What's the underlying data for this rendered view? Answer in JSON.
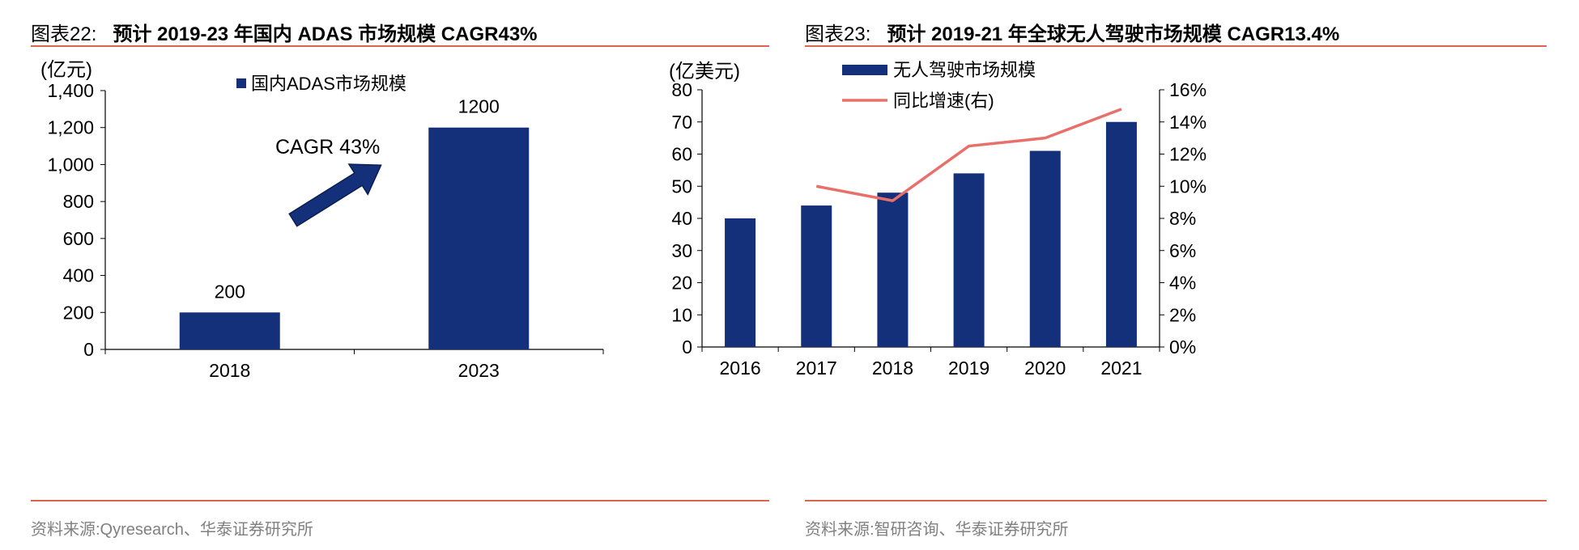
{
  "left": {
    "title_prefix": "图表22:",
    "title_main": "预计 2019-23 年国内 ADAS 市场规模 CAGR43%",
    "unit": "(亿元)",
    "source": "资料来源:Qyresearch、华泰证券研究所",
    "annotation": "CAGR 43%"
  },
  "right": {
    "title_prefix": "图表23:",
    "title_main": "预计 2019-21 年全球无人驾驶市场规模 CAGR13.4%",
    "unit": "(亿美元)",
    "source": "资料来源:智研咨询、华泰证券研究所"
  },
  "colors": {
    "bar": "#14307a",
    "line": "#e8706a",
    "rule": "#d9654c",
    "source": "#808080"
  },
  "chart_data": [
    {
      "type": "bar",
      "categories": [
        "2018",
        "2023"
      ],
      "series": [
        {
          "name": "国内ADAS市场规模",
          "values": [
            200,
            1200
          ]
        }
      ],
      "data_labels": [
        "200",
        "1200"
      ],
      "ylabel": "(亿元)",
      "ylim": [
        0,
        1400
      ],
      "yticks": [
        "0",
        "200",
        "400",
        "600",
        "800",
        "1,000",
        "1,200",
        "1,400"
      ],
      "annotation": "CAGR 43%",
      "legend": "top-center",
      "grid": false
    },
    {
      "type": "bar",
      "categories": [
        "2016",
        "2017",
        "2018",
        "2019",
        "2020",
        "2021"
      ],
      "series": [
        {
          "name": "无人驾驶市场规模",
          "type": "bar",
          "axis": "left",
          "values": [
            40,
            44,
            48,
            54,
            61,
            70
          ]
        },
        {
          "name": "同比增速(右)",
          "type": "line",
          "axis": "right",
          "values": [
            null,
            10.0,
            9.1,
            12.5,
            13.0,
            14.8
          ]
        }
      ],
      "ylabel": "(亿美元)",
      "ylim": [
        0,
        80
      ],
      "yticks": [
        "0",
        "10",
        "20",
        "30",
        "40",
        "50",
        "60",
        "70",
        "80"
      ],
      "y2lim": [
        0,
        16
      ],
      "y2ticks": [
        "0%",
        "2%",
        "4%",
        "6%",
        "8%",
        "10%",
        "12%",
        "14%",
        "16%"
      ],
      "legend": "top-center",
      "grid": false
    }
  ]
}
